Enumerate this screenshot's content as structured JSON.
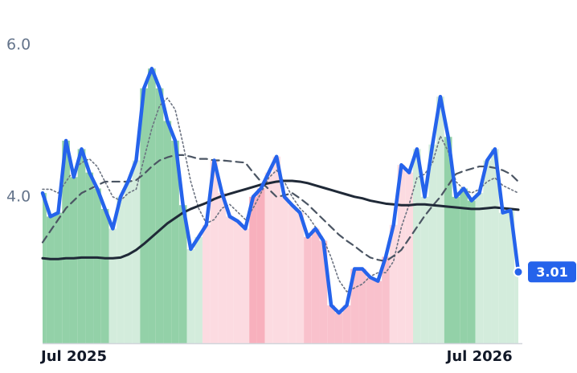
{
  "chart_data": {
    "type": "line",
    "categories": [
      "Jul 2025",
      null,
      null,
      null,
      null,
      null,
      null,
      null,
      null,
      null,
      null,
      null,
      null,
      null,
      null,
      null,
      null,
      null,
      null,
      null,
      null,
      null,
      null,
      null,
      null,
      null,
      null,
      null,
      null,
      null,
      null,
      null,
      null,
      null,
      null,
      null,
      null,
      null,
      null,
      null,
      null,
      null,
      null,
      null,
      null,
      null,
      null,
      null,
      null,
      null,
      null,
      null,
      "Jul 2026",
      null,
      null,
      null,
      null,
      null,
      null,
      null,
      null,
      null
    ],
    "ylim": [
      2.07,
      6.17
    ],
    "yticks": [
      {
        "value": 4,
        "label": "4.0"
      },
      {
        "value": 6,
        "label": "6.0"
      }
    ],
    "grid": false,
    "bar_colors": [
      "#93d1a8",
      "#93d1a8",
      "#93d1a8",
      "#93d1a8",
      "#93d1a8",
      "#93d1a8",
      "#93d1a8",
      "#93d1a8",
      "#93d1a8",
      "#d3ecdc",
      "#d3ecdc",
      "#d3ecdc",
      "#d3ecdc",
      "#93d1a8",
      "#93d1a8",
      "#93d1a8",
      "#93d1a8",
      "#93d1a8",
      "#93d1a8",
      "#d3ecdc",
      "#d3ecdc",
      "#fcdbe1",
      "#fcdbe1",
      "#fcdbe1",
      "#fcdbe1",
      "#fcdbe1",
      "#fcdbe1",
      "#f8b0bd",
      "#f8b0bd",
      "#fcdbe1",
      "#fcdbe1",
      "#fcdbe1",
      "#fcdbe1",
      "#fcdbe1",
      "#f9c1cc",
      "#f9c1cc",
      "#f9c1cc",
      "#f9c1cc",
      "#f9c1cc",
      "#f9c1cc",
      "#f9c1cc",
      "#f9c1cc",
      "#f9c1cc",
      "#f9c1cc",
      "#f9c1cc",
      "#fcdbe1",
      "#fcdbe1",
      "#fcdbe1",
      "#d3ecdc",
      "#d3ecdc",
      "#d3ecdc",
      "#d3ecdc",
      "#93d1a8",
      "#93d1a8",
      "#93d1a8",
      "#93d1a8",
      "#d3ecdc",
      "#d3ecdc",
      "#d3ecdc",
      "#d3ecdc",
      "#d3ecdc",
      "#d3ecdc"
    ],
    "series": [
      {
        "color": "#2563eb",
        "style": "solid",
        "values": [
          4.05,
          3.74,
          3.79,
          4.74,
          4.26,
          4.63,
          4.32,
          4.11,
          3.84,
          3.58,
          4.0,
          4.21,
          4.48,
          5.43,
          5.69,
          5.43,
          5.0,
          4.74,
          3.89,
          3.31,
          3.47,
          3.63,
          4.48,
          4.05,
          3.74,
          3.68,
          3.58,
          4.0,
          4.11,
          4.32,
          4.53,
          4.0,
          3.89,
          3.79,
          3.47,
          3.58,
          3.42,
          2.57,
          2.47,
          2.57,
          3.05,
          3.05,
          2.94,
          2.89,
          3.21,
          3.63,
          4.42,
          4.32,
          4.63,
          4.0,
          4.69,
          5.32,
          4.79,
          4.0,
          4.11,
          3.95,
          4.05,
          4.48,
          4.63,
          3.79,
          3.82,
          3.01
        ]
      },
      {
        "color": "#1f2937",
        "style": "solid",
        "values": [
          3.19,
          3.18,
          3.18,
          3.19,
          3.19,
          3.2,
          3.2,
          3.2,
          3.19,
          3.19,
          3.2,
          3.24,
          3.3,
          3.38,
          3.47,
          3.56,
          3.65,
          3.72,
          3.79,
          3.84,
          3.88,
          3.92,
          3.97,
          4.01,
          4.04,
          4.07,
          4.1,
          4.13,
          4.16,
          4.18,
          4.2,
          4.21,
          4.21,
          4.2,
          4.18,
          4.15,
          4.12,
          4.09,
          4.06,
          4.03,
          4.0,
          3.98,
          3.95,
          3.93,
          3.91,
          3.9,
          3.89,
          3.89,
          3.9,
          3.9,
          3.89,
          3.88,
          3.87,
          3.86,
          3.85,
          3.84,
          3.84,
          3.85,
          3.86,
          3.85,
          3.84,
          3.83
        ]
      },
      {
        "color": "#4b5563",
        "style": "dashed",
        "values": [
          3.4,
          3.55,
          3.7,
          3.85,
          3.95,
          4.05,
          4.1,
          4.15,
          4.2,
          4.2,
          4.2,
          4.2,
          4.22,
          4.3,
          4.4,
          4.48,
          4.52,
          4.55,
          4.55,
          4.53,
          4.5,
          4.5,
          4.48,
          4.48,
          4.47,
          4.46,
          4.45,
          4.32,
          4.2,
          4.1,
          4.0,
          4.02,
          4.05,
          3.98,
          3.9,
          3.8,
          3.7,
          3.6,
          3.5,
          3.42,
          3.35,
          3.27,
          3.2,
          3.17,
          3.15,
          3.22,
          3.3,
          3.45,
          3.6,
          3.75,
          3.88,
          4.0,
          4.15,
          4.3,
          4.34,
          4.37,
          4.4,
          4.4,
          4.38,
          4.35,
          4.3,
          4.2
        ]
      },
      {
        "color": "#6b7280",
        "style": "dotted",
        "values": [
          4.1,
          4.1,
          4.05,
          4.2,
          4.35,
          4.45,
          4.5,
          4.4,
          4.2,
          4.0,
          3.95,
          4.05,
          4.1,
          4.5,
          4.9,
          5.2,
          5.3,
          5.15,
          4.7,
          4.2,
          3.85,
          3.65,
          3.7,
          3.85,
          3.9,
          3.8,
          3.7,
          3.85,
          4.05,
          4.25,
          4.35,
          4.2,
          4.0,
          3.85,
          3.75,
          3.6,
          3.45,
          3.2,
          2.9,
          2.75,
          2.8,
          2.85,
          2.95,
          3.0,
          3.0,
          3.15,
          3.6,
          3.9,
          4.25,
          4.3,
          4.45,
          4.8,
          4.6,
          4.2,
          4.1,
          4.05,
          4.1,
          4.2,
          4.25,
          4.15,
          4.1,
          4.05
        ]
      }
    ]
  }
}
